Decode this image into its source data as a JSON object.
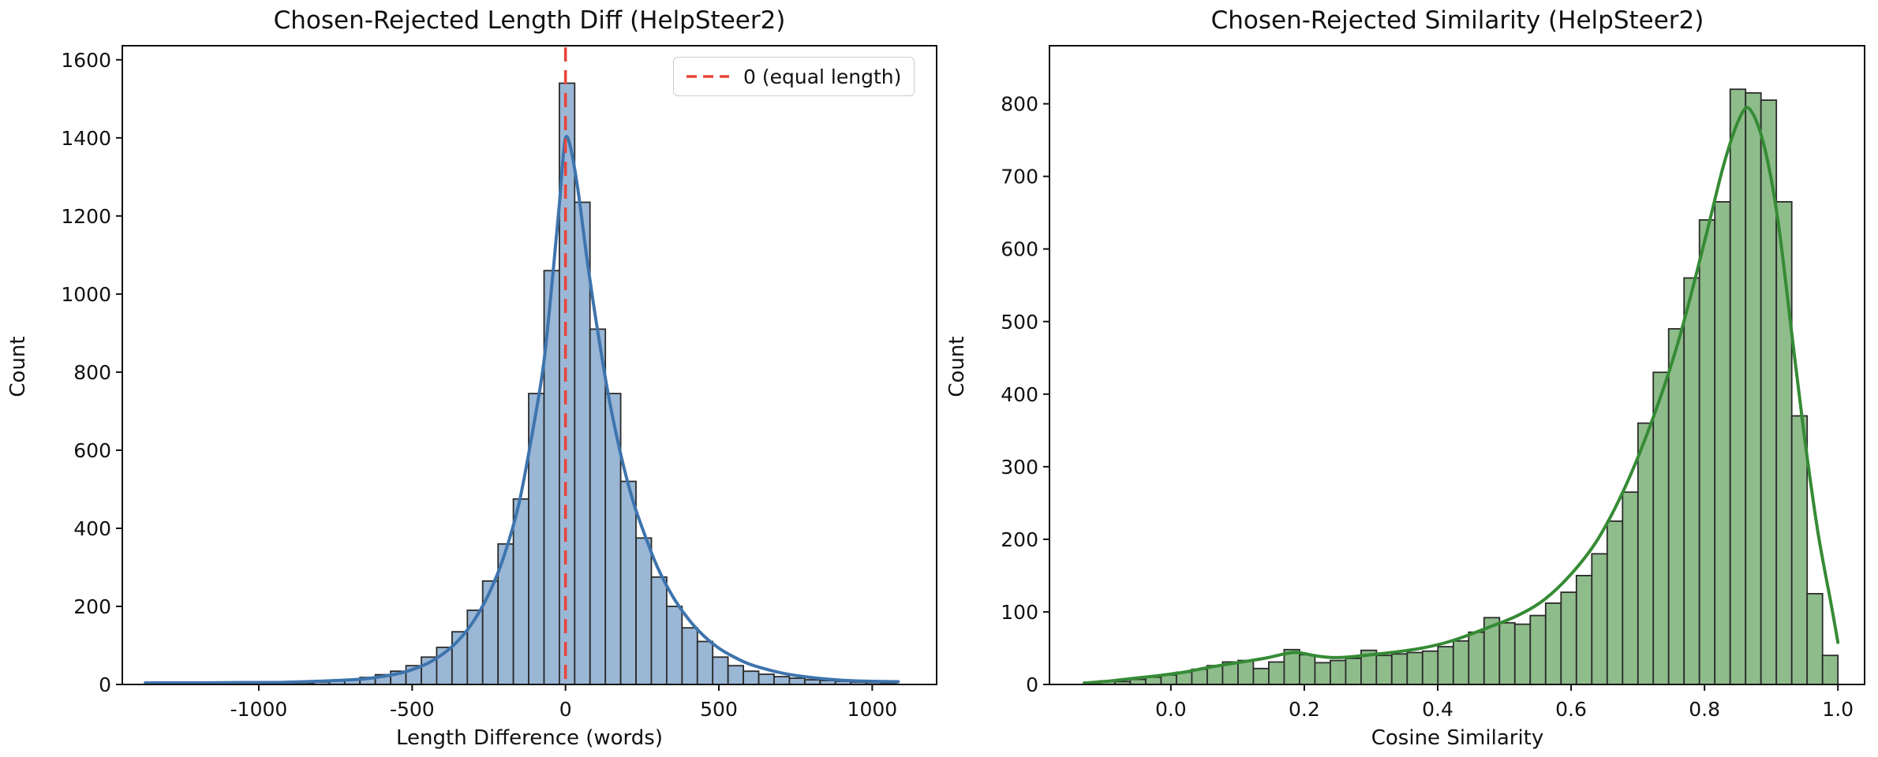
{
  "chart_data": [
    {
      "type": "histogram+kde",
      "title": "Chosen-Rejected Length Diff (HelpSteer2)",
      "xlabel": "Length Difference (words)",
      "ylabel": "Count",
      "legend_label": "0 (equal length)",
      "legend_position": "upper right",
      "grid": false,
      "xlim": [
        -1445,
        1210
      ],
      "ylim": [
        0,
        1636
      ],
      "xticks": [
        -1000,
        -500,
        0,
        500,
        1000
      ],
      "xtick_labels": [
        "-1000",
        "-500",
        "0",
        "500",
        "1000"
      ],
      "yticks": [
        0,
        200,
        400,
        600,
        800,
        1000,
        1200,
        1400,
        1600
      ],
      "ytick_labels": [
        "0",
        "200",
        "400",
        "600",
        "800",
        "1000",
        "1200",
        "1400",
        "1600"
      ],
      "bin_start": -1370,
      "bin_width": 50,
      "counts": [
        1,
        1,
        1,
        1,
        2,
        2,
        2,
        2,
        3,
        3,
        4,
        6,
        9,
        13,
        18,
        25,
        34,
        48,
        70,
        95,
        135,
        190,
        265,
        360,
        475,
        745,
        1060,
        1540,
        1235,
        910,
        745,
        520,
        375,
        275,
        200,
        145,
        110,
        70,
        48,
        34,
        26,
        20,
        16,
        12,
        10,
        8,
        6,
        5,
        4
      ],
      "kde": [
        [
          -1370,
          4
        ],
        [
          -1200,
          4
        ],
        [
          -1050,
          5
        ],
        [
          -950,
          5
        ],
        [
          -850,
          7
        ],
        [
          -750,
          10
        ],
        [
          -650,
          15
        ],
        [
          -550,
          27
        ],
        [
          -500,
          38
        ],
        [
          -450,
          54
        ],
        [
          -400,
          78
        ],
        [
          -350,
          112
        ],
        [
          -300,
          162
        ],
        [
          -250,
          232
        ],
        [
          -200,
          330
        ],
        [
          -150,
          470
        ],
        [
          -100,
          680
        ],
        [
          -70,
          830
        ],
        [
          -40,
          1060
        ],
        [
          -20,
          1230
        ],
        [
          -10,
          1330
        ],
        [
          0,
          1400
        ],
        [
          15,
          1380
        ],
        [
          40,
          1270
        ],
        [
          70,
          1090
        ],
        [
          100,
          930
        ],
        [
          140,
          740
        ],
        [
          180,
          590
        ],
        [
          220,
          470
        ],
        [
          260,
          380
        ],
        [
          300,
          300
        ],
        [
          350,
          225
        ],
        [
          400,
          168
        ],
        [
          450,
          125
        ],
        [
          500,
          93
        ],
        [
          550,
          70
        ],
        [
          600,
          52
        ],
        [
          650,
          40
        ],
        [
          700,
          30
        ],
        [
          750,
          23
        ],
        [
          800,
          18
        ],
        [
          850,
          14
        ],
        [
          900,
          11
        ],
        [
          950,
          9
        ],
        [
          1000,
          8
        ],
        [
          1085,
          7
        ]
      ],
      "vline_x": 0,
      "colors": {
        "bar_fill": "#9ab7d6",
        "bar_edge": "#2b2b2b",
        "kde": "#3e74ad",
        "vline": "#e8453a",
        "axis": "#111111"
      }
    },
    {
      "type": "histogram+kde",
      "title": "Chosen-Rejected Similarity (HelpSteer2)",
      "xlabel": "Cosine Similarity",
      "ylabel": "Count",
      "grid": false,
      "xlim": [
        -0.182,
        1.04
      ],
      "ylim": [
        0,
        880
      ],
      "xticks": [
        0.0,
        0.2,
        0.4,
        0.6,
        0.8,
        1.0
      ],
      "xtick_labels": [
        "0.0",
        "0.2",
        "0.4",
        "0.6",
        "0.8",
        "1.0"
      ],
      "yticks": [
        0,
        100,
        200,
        300,
        400,
        500,
        600,
        700,
        800
      ],
      "ytick_labels": [
        "0",
        "100",
        "200",
        "300",
        "400",
        "500",
        "600",
        "700",
        "800"
      ],
      "bin_start": -0.13,
      "bin_width": 0.023061,
      "counts": [
        3,
        5,
        4,
        7,
        10,
        13,
        17,
        21,
        26,
        31,
        33,
        22,
        31,
        48,
        41,
        30,
        33,
        36,
        47,
        40,
        42,
        44,
        46,
        52,
        60,
        72,
        92,
        85,
        83,
        95,
        112,
        127,
        150,
        180,
        225,
        265,
        360,
        430,
        490,
        560,
        640,
        665,
        820,
        815,
        805,
        665,
        370,
        125,
        40
      ],
      "kde": [
        [
          -0.13,
          2
        ],
        [
          -0.1,
          4
        ],
        [
          -0.06,
          8
        ],
        [
          -0.02,
          12
        ],
        [
          0.02,
          17
        ],
        [
          0.06,
          24
        ],
        [
          0.1,
          30
        ],
        [
          0.14,
          36
        ],
        [
          0.17,
          42
        ],
        [
          0.19,
          44
        ],
        [
          0.22,
          39
        ],
        [
          0.25,
          37
        ],
        [
          0.29,
          40
        ],
        [
          0.33,
          44
        ],
        [
          0.37,
          49
        ],
        [
          0.41,
          57
        ],
        [
          0.44,
          66
        ],
        [
          0.48,
          80
        ],
        [
          0.52,
          95
        ],
        [
          0.56,
          117
        ],
        [
          0.6,
          152
        ],
        [
          0.64,
          200
        ],
        [
          0.68,
          270
        ],
        [
          0.72,
          360
        ],
        [
          0.76,
          470
        ],
        [
          0.8,
          610
        ],
        [
          0.83,
          720
        ],
        [
          0.855,
          785
        ],
        [
          0.87,
          790
        ],
        [
          0.89,
          740
        ],
        [
          0.91,
          640
        ],
        [
          0.93,
          490
        ],
        [
          0.95,
          340
        ],
        [
          0.97,
          210
        ],
        [
          0.99,
          110
        ],
        [
          1.0,
          58
        ]
      ],
      "colors": {
        "bar_fill": "#8fbc8b",
        "bar_edge": "#2b2b2b",
        "kde": "#358b35",
        "axis": "#111111"
      }
    }
  ]
}
